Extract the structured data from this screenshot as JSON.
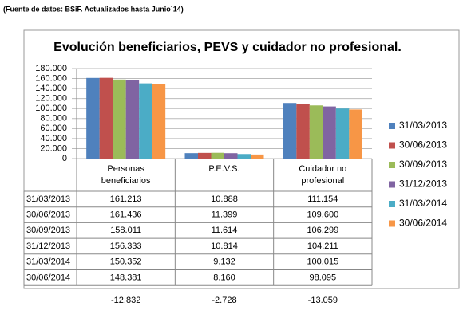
{
  "note": "(Fuente de datos: BSiF. Actualizados hasta Junio´14)",
  "chart_data": {
    "type": "bar",
    "title": "Evolución beneficiarios, PEVS y cuidador no profesional.",
    "categories": [
      "Personas beneficiarios",
      "P.E.V.S.",
      "Cuidador no profesional"
    ],
    "series": [
      {
        "name": "31/03/2013",
        "color": "#4f81bd",
        "values": [
          161213,
          10888,
          111154
        ],
        "value_labels": [
          "161.213",
          "10.888",
          "111.154"
        ]
      },
      {
        "name": "30/06/2013",
        "color": "#c0504d",
        "values": [
          161436,
          11399,
          109600
        ],
        "value_labels": [
          "161.436",
          "11.399",
          "109.600"
        ]
      },
      {
        "name": "30/09/2013",
        "color": "#9bbb59",
        "values": [
          158011,
          11614,
          106299
        ],
        "value_labels": [
          "158.011",
          "11.614",
          "106.299"
        ]
      },
      {
        "name": "31/12/2013",
        "color": "#8064a2",
        "values": [
          156333,
          10814,
          104211
        ],
        "value_labels": [
          "156.333",
          "10.814",
          "104.211"
        ]
      },
      {
        "name": "31/03/2014",
        "color": "#4bacc6",
        "values": [
          150352,
          9132,
          100015
        ],
        "value_labels": [
          "150.352",
          "9.132",
          "100.015"
        ]
      },
      {
        "name": "30/06/2014",
        "color": "#f79646",
        "values": [
          148381,
          8160,
          98095
        ],
        "value_labels": [
          "148.381",
          "8.160",
          "98.095"
        ]
      }
    ],
    "ylim": [
      0,
      180000
    ],
    "yticks": [
      0,
      {
        "value": 20000,
        "label": "20.000"
      },
      {
        "value": 40000,
        "label": "40.000"
      },
      {
        "value": 60000,
        "label": "60.000"
      },
      {
        "value": 80000,
        "label": "80.000"
      },
      {
        "value": 100000,
        "label": "100.000"
      },
      {
        "value": 120000,
        "label": "120.000"
      },
      {
        "value": 140000,
        "label": "140.000"
      },
      {
        "value": 160000,
        "label": "160.000"
      },
      {
        "value": 180000,
        "label": "180.000"
      }
    ],
    "grid": true,
    "legend": "right",
    "differences": [
      "-12.832",
      "-2.728",
      "-13.059"
    ]
  }
}
